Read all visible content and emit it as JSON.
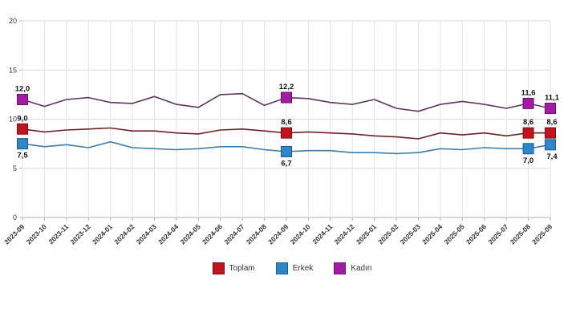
{
  "chart_data": {
    "type": "line",
    "title": "",
    "xlabel": "",
    "ylabel": "",
    "ylim": [
      0,
      20
    ],
    "yticks": [
      0,
      5,
      10,
      15,
      20
    ],
    "grid": true,
    "legend_position": "bottom",
    "decimal_separator": ",",
    "x": [
      "2023-09",
      "2023-10",
      "2023-11",
      "2023-12",
      "2024-01",
      "2024-02",
      "2024-03",
      "2024-04",
      "2024-05",
      "2024-06",
      "2024-07",
      "2024-08",
      "2024-09",
      "2024-10",
      "2024-11",
      "2024-12",
      "2025-01",
      "2025-02",
      "2025-03",
      "2025-04",
      "2025-05",
      "2025-06",
      "2025-07",
      "2025-08",
      "2025-09"
    ],
    "labeled_indices": [
      0,
      12,
      23,
      24
    ],
    "series": [
      {
        "name": "Toplam",
        "color": "#c0141f",
        "marker_border": "#7d0d14",
        "line_color": "#6d2326",
        "label_placement": "above",
        "values": [
          9.0,
          8.7,
          8.9,
          9.0,
          9.1,
          8.8,
          8.8,
          8.6,
          8.5,
          8.9,
          9.0,
          8.8,
          8.6,
          8.7,
          8.6,
          8.5,
          8.3,
          8.2,
          8.0,
          8.6,
          8.4,
          8.6,
          8.3,
          8.6,
          8.6
        ],
        "labeled_values": [
          "9,0",
          "8,6",
          "8,6",
          "8,6"
        ]
      },
      {
        "name": "Erkek",
        "color": "#2e86c8",
        "marker_border": "#1d5c8e",
        "line_color": "#3f7ca8",
        "label_placement": "below",
        "values": [
          7.5,
          7.2,
          7.4,
          7.1,
          7.7,
          7.1,
          7.0,
          6.9,
          7.0,
          7.2,
          7.2,
          6.9,
          6.7,
          6.8,
          6.8,
          6.6,
          6.6,
          6.5,
          6.6,
          7.0,
          6.9,
          7.1,
          7.0,
          7.0,
          7.4
        ],
        "labeled_values": [
          "7,5",
          "6,7",
          "7,0",
          "7,4"
        ]
      },
      {
        "name": "Kadın",
        "color": "#a21ba2",
        "marker_border": "#6e106e",
        "line_color": "#5e355e",
        "label_placement": "above",
        "values": [
          12.0,
          11.3,
          12.0,
          12.2,
          11.7,
          11.6,
          12.3,
          11.5,
          11.2,
          12.5,
          12.6,
          11.4,
          12.2,
          12.1,
          11.7,
          11.5,
          12.0,
          11.1,
          10.8,
          11.5,
          11.8,
          11.5,
          11.1,
          11.6,
          11.1
        ],
        "labeled_values": [
          "12,0",
          "12,2",
          "11,6",
          "11,1"
        ]
      }
    ],
    "axis_colors": {
      "grid_h": "#d9d9d9",
      "grid_v": "#e3e3e3",
      "axis_line": "#b3b3b3",
      "tick_label": "#333333",
      "data_label": "#111111"
    }
  },
  "legend": {
    "items": [
      "Toplam",
      "Erkek",
      "Kadın"
    ]
  }
}
